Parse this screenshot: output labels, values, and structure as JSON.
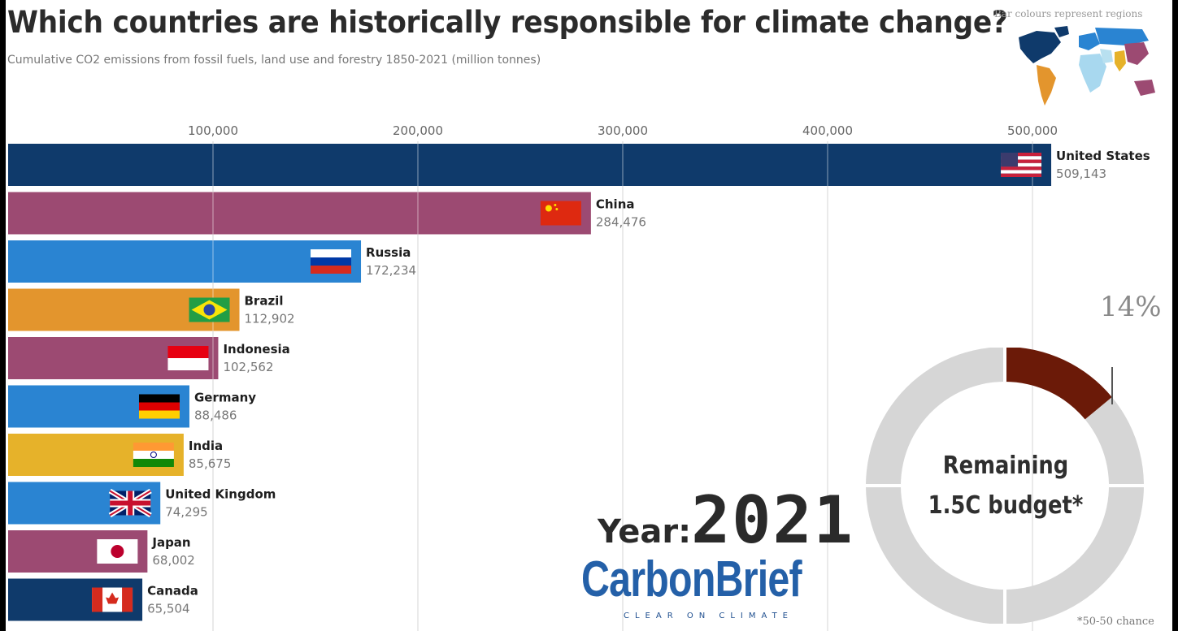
{
  "title": "Which countries are historically responsible for climate change?",
  "subtitle": "Cumulative CO2 emissions from fossil fuels, land use and forestry 1850-2021 (million tonnes)",
  "region_note": "Bar colours represent regions",
  "colors": {
    "north_america": "#0f3a6b",
    "asia": "#9c4a72",
    "europe": "#2a84d2",
    "latin_america": "#e3952d",
    "south_asia": "#e6b22a",
    "budget_used": "#6b1a08",
    "budget_remaining": "#d6d6d6"
  },
  "chart_data": {
    "type": "bar",
    "orientation": "horizontal",
    "categories": [
      "United States",
      "China",
      "Russia",
      "Brazil",
      "Indonesia",
      "Germany",
      "India",
      "United Kingdom",
      "Japan",
      "Canada"
    ],
    "values": [
      509143,
      284476,
      172234,
      112902,
      102562,
      88486,
      85675,
      74295,
      68002,
      65504
    ],
    "value_labels": [
      "509,143",
      "284,476",
      "172,234",
      "112,902",
      "102,562",
      "88,486",
      "85,675",
      "74,295",
      "68,002",
      "65,504"
    ],
    "regions": [
      "north_america",
      "asia",
      "europe",
      "latin_america",
      "asia",
      "europe",
      "south_asia",
      "europe",
      "asia",
      "north_america"
    ],
    "flags": [
      "flag-us",
      "flag-china",
      "flag-russia",
      "flag-brazil",
      "flag-indonesia",
      "flag-germany",
      "flag-india",
      "flag-uk",
      "flag-japan",
      "flag-canada"
    ],
    "x_ticks": [
      100000,
      200000,
      300000,
      400000,
      500000
    ],
    "x_tick_labels": [
      "100,000",
      "200,000",
      "300,000",
      "400,000",
      "500,000"
    ],
    "xlim": [
      0,
      570000
    ],
    "grid": true,
    "tick_position": "top"
  },
  "budget": {
    "percent_label": "14%",
    "used_fraction": 0.14,
    "label_line1": "Remaining",
    "label_line2": "1.5C budget*",
    "footnote": "*50-50 chance"
  },
  "year": {
    "prefix": "Year:",
    "value": "2021"
  },
  "brand": {
    "name": "CarbonBrief",
    "tagline": "CLEAR ON CLIMATE"
  }
}
